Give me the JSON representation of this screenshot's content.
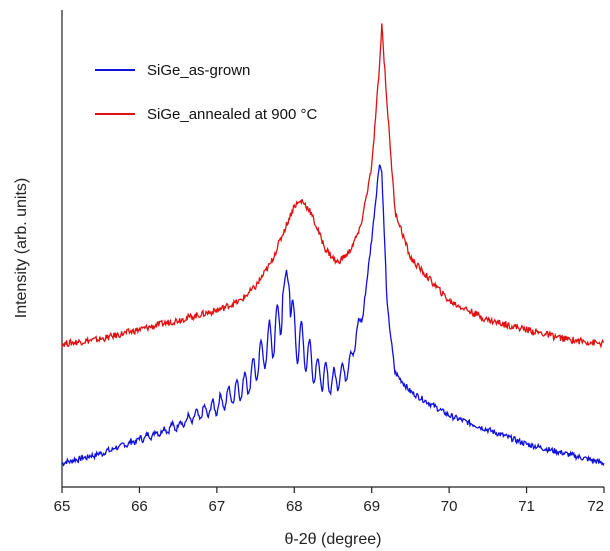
{
  "chart_data": {
    "type": "line",
    "title": "",
    "xlabel": "θ-2θ (degree)",
    "ylabel": "Intensity (arb. units)",
    "xlim": [
      65,
      72
    ],
    "ylim": [
      0,
      1
    ],
    "x_ticks": [
      "65",
      "66",
      "67",
      "68",
      "69",
      "70",
      "71",
      "72"
    ],
    "y_ticks": [],
    "grid": false,
    "legend_position": "top-left",
    "series": [
      {
        "name": "SiGe_as-grown",
        "color": "#1010dd",
        "x": [
          65.0,
          65.5,
          66.0,
          66.5,
          67.0,
          67.4,
          67.6,
          67.8,
          67.9,
          68.0,
          68.1,
          68.3,
          68.5,
          68.7,
          68.9,
          69.0,
          69.1,
          69.13,
          69.2,
          69.3,
          69.5,
          70.0,
          70.5,
          71.0,
          71.5,
          72.0
        ],
        "values": [
          0.05,
          0.07,
          0.1,
          0.13,
          0.17,
          0.22,
          0.28,
          0.34,
          0.46,
          0.32,
          0.3,
          0.24,
          0.22,
          0.25,
          0.38,
          0.52,
          0.68,
          0.66,
          0.38,
          0.24,
          0.2,
          0.15,
          0.12,
          0.09,
          0.07,
          0.05
        ]
      },
      {
        "name": "SiGe_annealed at 900 °C",
        "color": "#e01010",
        "x": [
          65.0,
          65.5,
          66.0,
          66.5,
          67.0,
          67.3,
          67.5,
          67.7,
          67.9,
          68.0,
          68.1,
          68.2,
          68.4,
          68.55,
          68.7,
          68.85,
          69.0,
          69.1,
          69.13,
          69.2,
          69.3,
          69.5,
          70.0,
          70.5,
          71.0,
          71.5,
          72.0
        ],
        "values": [
          0.3,
          0.31,
          0.33,
          0.35,
          0.37,
          0.39,
          0.42,
          0.47,
          0.55,
          0.59,
          0.6,
          0.58,
          0.5,
          0.47,
          0.49,
          0.54,
          0.67,
          0.88,
          0.97,
          0.8,
          0.58,
          0.48,
          0.39,
          0.35,
          0.33,
          0.31,
          0.3
        ]
      }
    ]
  }
}
